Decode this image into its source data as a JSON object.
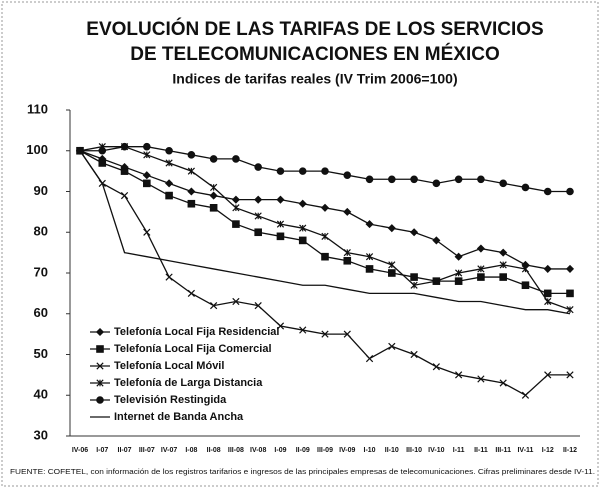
{
  "chart_data": {
    "type": "line",
    "title": [
      "EVOLUCIÓN DE LAS TARIFAS DE LOS SERVICIOS",
      "DE TELECOMUNICACIONES EN MÉXICO"
    ],
    "subtitle": "Indices de tarifas reales (IV Trim 2006=100)",
    "source": "FUENTE: COFETEL, con información de los registros tarifarios e ingresos de las principales empresas de telecomunicaciones. Cifras preliminares desde IV-11.",
    "categories": [
      "IV-06",
      "I-07",
      "II-07",
      "III-07",
      "IV-07",
      "I-08",
      "II-08",
      "III-08",
      "IV-08",
      "I-09",
      "II-09",
      "III-09",
      "IV-09",
      "I-10",
      "II-10",
      "III-10",
      "IV-10",
      "I-11",
      "II-11",
      "III-11",
      "IV-11",
      "I-12",
      "II-12"
    ],
    "ylim": [
      30,
      110
    ],
    "yticks": [
      30,
      40,
      50,
      60,
      70,
      80,
      90,
      100,
      110
    ],
    "grid": false,
    "legend": "lower-left",
    "series": [
      {
        "name": "Telefonía Local Fija Residencial",
        "color": "#111111",
        "marker": "diamond",
        "values": [
          100,
          98,
          96,
          94,
          92,
          90,
          89,
          88,
          88,
          88,
          87,
          86,
          85,
          82,
          81,
          80,
          78,
          74,
          76,
          75,
          72,
          71,
          71
        ]
      },
      {
        "name": "Telefonía Local Fija Comercial",
        "color": "#111111",
        "marker": "square",
        "values": [
          100,
          97,
          95,
          92,
          89,
          87,
          86,
          82,
          80,
          79,
          78,
          74,
          73,
          71,
          70,
          69,
          68,
          68,
          69,
          69,
          67,
          65,
          65
        ]
      },
      {
        "name": "Telefonía Local Móvil",
        "color": "#111111",
        "marker": "x",
        "values": [
          100,
          92,
          89,
          80,
          69,
          65,
          62,
          63,
          62,
          57,
          56,
          55,
          55,
          49,
          52,
          50,
          47,
          45,
          44,
          43,
          40,
          45,
          45
        ]
      },
      {
        "name": "Telefonía de Larga Distancia",
        "color": "#111111",
        "marker": "star",
        "values": [
          100,
          101,
          101,
          99,
          97,
          95,
          91,
          86,
          84,
          82,
          81,
          79,
          75,
          74,
          72,
          67,
          68,
          70,
          71,
          72,
          71,
          63,
          61
        ]
      },
      {
        "name": "Televisión Restingida",
        "color": "#111111",
        "marker": "circle",
        "values": [
          100,
          100,
          101,
          101,
          100,
          99,
          98,
          98,
          96,
          95,
          95,
          95,
          94,
          93,
          93,
          93,
          92,
          93,
          93,
          92,
          91,
          90,
          90
        ]
      },
      {
        "name": "Internet de Banda Ancha",
        "color": "#111111",
        "marker": "none",
        "values": [
          100,
          92,
          75,
          74,
          73,
          72,
          71,
          70,
          69,
          68,
          67,
          67,
          66,
          65,
          65,
          65,
          64,
          63,
          63,
          62,
          61,
          61,
          60
        ]
      }
    ]
  }
}
